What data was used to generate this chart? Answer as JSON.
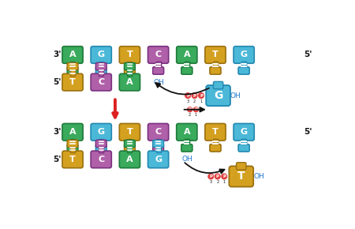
{
  "bg_color": "#ffffff",
  "colors": {
    "green": "#3aaa5c",
    "blue": "#4bb8d8",
    "gold": "#d4a020",
    "purple": "#b060a8",
    "phosphate_fill": "#e04040",
    "phosphate_edge": "#cc2020",
    "arrow_red": "#dd2020",
    "arrow_black": "#111111",
    "text_blue": "#2277cc",
    "text_black": "#111111",
    "text_white": "#ffffff",
    "stem_white": "#ffffff"
  },
  "top_template": [
    "A",
    "G",
    "T",
    "C",
    "A",
    "T",
    "G"
  ],
  "top_template_colors": [
    "green",
    "blue",
    "gold",
    "purple",
    "green",
    "gold",
    "blue"
  ],
  "top_new": [
    "T",
    "C",
    "A"
  ],
  "top_new_colors": [
    "gold",
    "purple",
    "green"
  ],
  "top_new_incoming": "G",
  "top_new_incoming_color": "blue",
  "bot_template": [
    "A",
    "G",
    "T",
    "C",
    "A",
    "T",
    "G"
  ],
  "bot_template_colors": [
    "green",
    "blue",
    "gold",
    "purple",
    "green",
    "gold",
    "blue"
  ],
  "bot_new": [
    "T",
    "C",
    "A",
    "G"
  ],
  "bot_new_colors": [
    "gold",
    "purple",
    "green",
    "blue"
  ],
  "bot_new_incoming": "T",
  "bot_new_incoming_color": "gold"
}
